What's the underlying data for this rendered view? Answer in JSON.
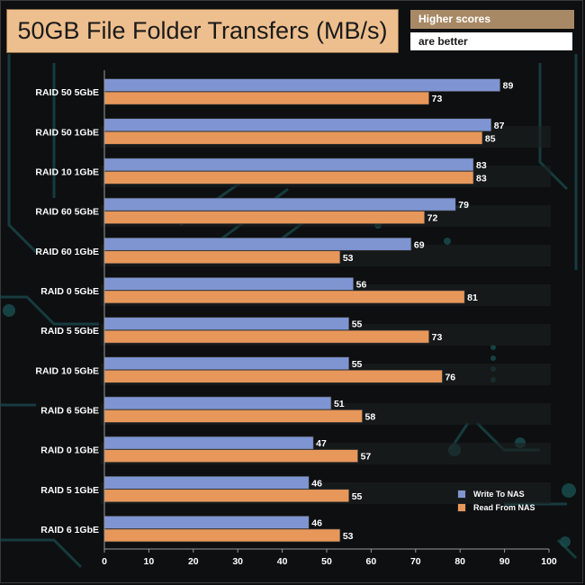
{
  "header": {
    "title": "50GB File Folder Transfers (MB/s)",
    "note_line1": "Higher scores",
    "note_line2": "are better"
  },
  "colors": {
    "write": "#7f95d2",
    "read": "#e8975a",
    "title_bg": "#eebf8e",
    "note_bg": "#a88966"
  },
  "chart_data": {
    "type": "bar",
    "orientation": "horizontal",
    "categories": [
      "RAID 50 5GbE",
      "RAID 50 1GbE",
      "RAID 10 1GbE",
      "RAID 60 5GbE",
      "RAID 60 1GbE",
      "RAID 0 5GbE",
      "RAID 5 5GbE",
      "RAID 10 5GbE",
      "RAID 6 5GbE",
      "RAID 0 1GbE",
      "RAID 5 1GbE",
      "RAID 6 1GbE"
    ],
    "series": [
      {
        "name": "Write To NAS",
        "values": [
          89,
          87,
          83,
          79,
          69,
          56,
          55,
          55,
          51,
          47,
          46,
          46
        ]
      },
      {
        "name": "Read From NAS",
        "values": [
          73,
          85,
          83,
          72,
          53,
          81,
          73,
          76,
          58,
          57,
          55,
          53
        ]
      }
    ],
    "xlim": [
      0,
      100
    ],
    "xticks": [
      0,
      10,
      20,
      30,
      40,
      50,
      60,
      70,
      80,
      90,
      100
    ],
    "data_labels": true,
    "legend_position": "bottom-right",
    "grid": false
  }
}
